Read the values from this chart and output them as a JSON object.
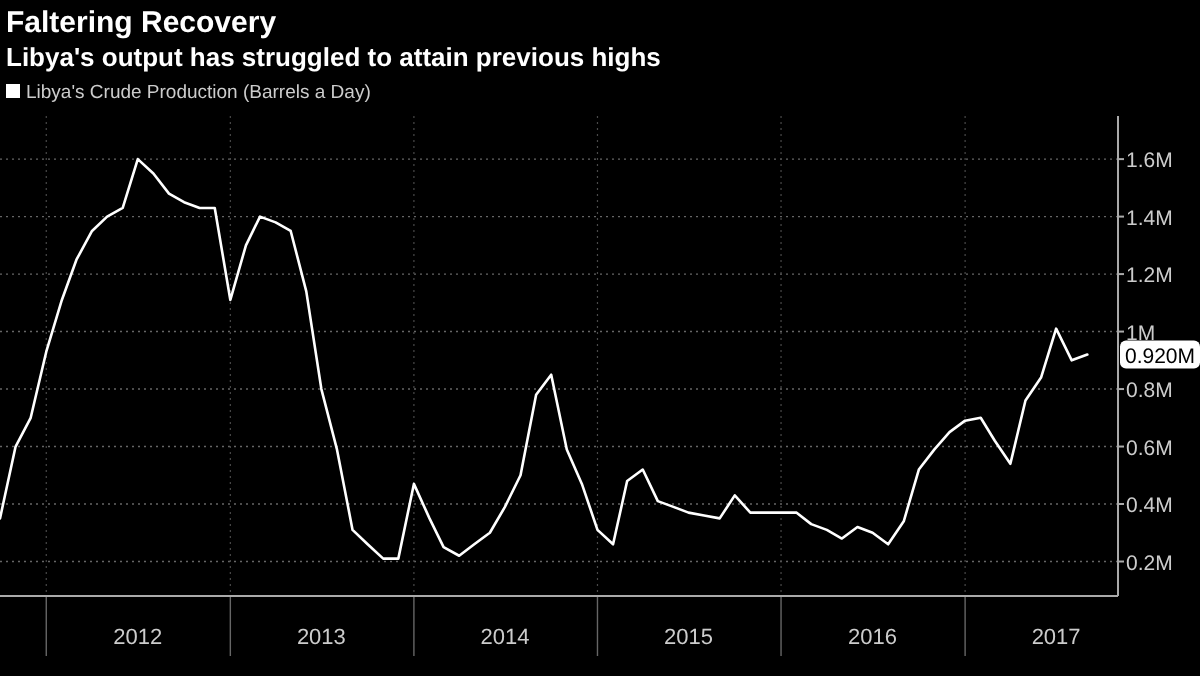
{
  "chart_data": {
    "type": "line",
    "title": "Faltering Recovery",
    "subtitle": "Libya's output has struggled to attain previous highs",
    "x": [
      "2011-10",
      "2011-11",
      "2011-12",
      "2012-01",
      "2012-02",
      "2012-03",
      "2012-04",
      "2012-05",
      "2012-06",
      "2012-07",
      "2012-08",
      "2012-09",
      "2012-10",
      "2012-11",
      "2012-12",
      "2013-01",
      "2013-02",
      "2013-03",
      "2013-04",
      "2013-05",
      "2013-06",
      "2013-07",
      "2013-08",
      "2013-09",
      "2013-10",
      "2013-11",
      "2013-12",
      "2014-01",
      "2014-02",
      "2014-03",
      "2014-04",
      "2014-05",
      "2014-06",
      "2014-07",
      "2014-08",
      "2014-09",
      "2014-10",
      "2014-11",
      "2014-12",
      "2015-01",
      "2015-02",
      "2015-03",
      "2015-04",
      "2015-05",
      "2015-06",
      "2015-07",
      "2015-08",
      "2015-09",
      "2015-10",
      "2015-11",
      "2015-12",
      "2016-01",
      "2016-02",
      "2016-03",
      "2016-04",
      "2016-05",
      "2016-06",
      "2016-07",
      "2016-08",
      "2016-09",
      "2016-10",
      "2016-11",
      "2016-12",
      "2017-01",
      "2017-02",
      "2017-03",
      "2017-04",
      "2017-05",
      "2017-06",
      "2017-07",
      "2017-08",
      "2017-09"
    ],
    "series": [
      {
        "name": "Libya's Crude Production (Barrels a Day)",
        "color": "#ffffff",
        "values": [
          0.35,
          0.6,
          0.7,
          0.93,
          1.11,
          1.25,
          1.35,
          1.4,
          1.43,
          1.6,
          1.55,
          1.48,
          1.45,
          1.43,
          1.43,
          1.11,
          1.3,
          1.4,
          1.38,
          1.35,
          1.14,
          0.8,
          0.59,
          0.31,
          0.26,
          0.21,
          0.21,
          0.47,
          0.35,
          0.25,
          0.22,
          0.26,
          0.3,
          0.39,
          0.5,
          0.78,
          0.85,
          0.59,
          0.47,
          0.31,
          0.26,
          0.48,
          0.52,
          0.41,
          0.39,
          0.37,
          0.36,
          0.35,
          0.43,
          0.37,
          0.37,
          0.37,
          0.37,
          0.33,
          0.31,
          0.28,
          0.32,
          0.3,
          0.26,
          0.34,
          0.52,
          0.59,
          0.65,
          0.69,
          0.7,
          0.62,
          0.54,
          0.76,
          0.84,
          1.01,
          0.9,
          0.92
        ],
        "value_labels": [
          null,
          null,
          null,
          null,
          null,
          null,
          null,
          null,
          null,
          null,
          null,
          null,
          null,
          null,
          null,
          null,
          null,
          null,
          null,
          null,
          null,
          null,
          null,
          null,
          null,
          null,
          null,
          null,
          null,
          null,
          null,
          null,
          null,
          null,
          null,
          null,
          null,
          null,
          null,
          null,
          null,
          null,
          null,
          null,
          null,
          null,
          null,
          null,
          null,
          null,
          null,
          null,
          null,
          null,
          null,
          null,
          null,
          null,
          null,
          null,
          null,
          null,
          null,
          null,
          null,
          null,
          null,
          null,
          null,
          null,
          null,
          "0.920M"
        ]
      }
    ],
    "xlim": [
      "2011-10",
      "2017-11"
    ],
    "xticks": [
      {
        "value": "2012-01",
        "label": null
      },
      {
        "value": "2012-07",
        "label": "2012"
      },
      {
        "value": "2013-01",
        "label": null
      },
      {
        "value": "2013-07",
        "label": "2013"
      },
      {
        "value": "2014-01",
        "label": null
      },
      {
        "value": "2014-07",
        "label": "2014"
      },
      {
        "value": "2015-01",
        "label": null
      },
      {
        "value": "2015-07",
        "label": "2015"
      },
      {
        "value": "2016-01",
        "label": null
      },
      {
        "value": "2016-07",
        "label": "2016"
      },
      {
        "value": "2017-01",
        "label": null
      },
      {
        "value": "2017-07",
        "label": "2017"
      }
    ],
    "ylim": [
      0.08,
      1.75
    ],
    "yticks": [
      {
        "value": 0.2,
        "label": "0.2M"
      },
      {
        "value": 0.4,
        "label": "0.4M"
      },
      {
        "value": 0.6,
        "label": "0.6M"
      },
      {
        "value": 0.8,
        "label": "0.8M"
      },
      {
        "value": 1,
        "label": "1M"
      },
      {
        "value": 1.2,
        "label": "1.2M"
      },
      {
        "value": 1.4,
        "label": "1.4M"
      },
      {
        "value": 1.6,
        "label": "1.6M"
      }
    ],
    "grid": true,
    "legend": "top left",
    "marker": "none",
    "line_style": "solid"
  }
}
